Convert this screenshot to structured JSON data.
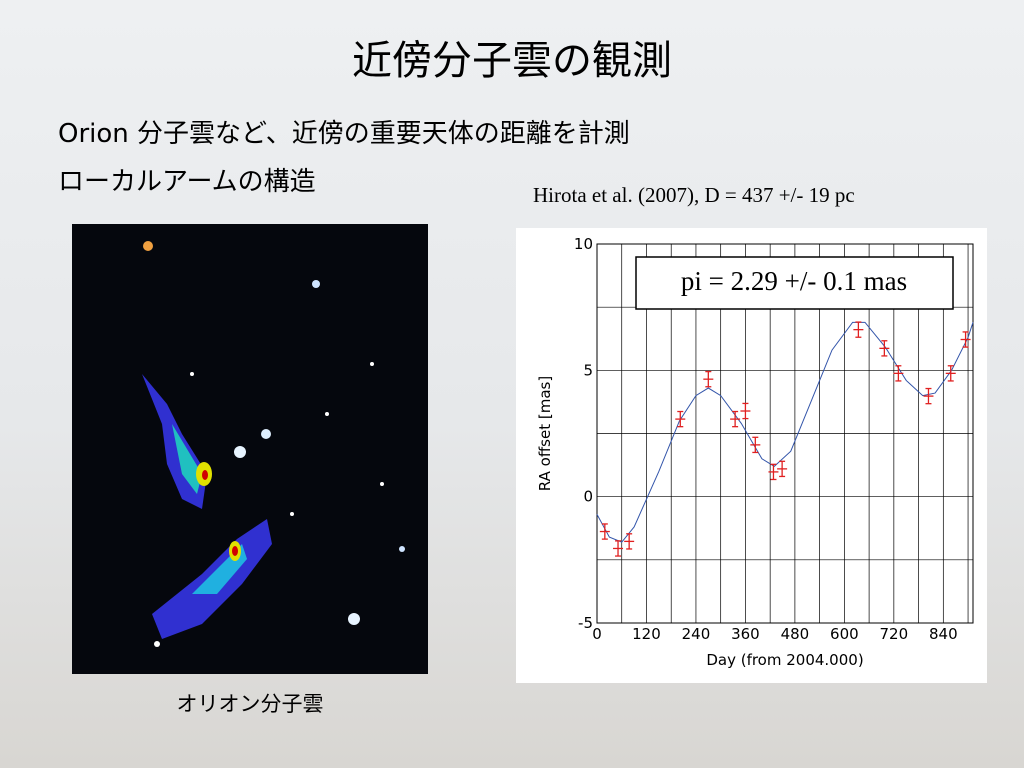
{
  "slide": {
    "title": "近傍分子雲の観測",
    "bullets": [
      "Orion 分子雲など、近傍の重要天体の距離を計測",
      "ローカルアームの構造"
    ],
    "citation": "Hirota et al. (2007), D = 437 +/- 19 pc",
    "image_caption": "オリオン分子雲"
  },
  "chart_data": {
    "type": "scatter",
    "annotation": "pi = 2.29 +/- 0.1 mas",
    "x_label": "Day (from 2004.000)",
    "y_label": "RA offset [mas]",
    "xlim": [
      0,
      912
    ],
    "ylim": [
      -5,
      10
    ],
    "xticks": [
      0,
      120,
      240,
      360,
      480,
      600,
      720,
      840
    ],
    "yticks": [
      -5,
      0,
      5,
      10
    ],
    "xgrid": [
      60,
      180,
      300,
      420,
      540,
      660,
      780,
      900
    ],
    "ygrid": [
      -2.5,
      2.5,
      7.5
    ],
    "grid": true,
    "points": {
      "color": "#e02020",
      "x": [
        19,
        51,
        78,
        202,
        270,
        335,
        360,
        384,
        428,
        449,
        634,
        697,
        731,
        804,
        858,
        894
      ],
      "values": [
        -1.38,
        -2.05,
        -1.77,
        3.07,
        4.65,
        3.07,
        3.39,
        2.05,
        0.98,
        1.1,
        6.61,
        5.87,
        4.88,
        3.98,
        4.88,
        6.22
      ],
      "errors": [
        0.3,
        0.3,
        0.3,
        0.3,
        0.3,
        0.3,
        0.3,
        0.3,
        0.3,
        0.3,
        0.3,
        0.3,
        0.3,
        0.3,
        0.3,
        0.3
      ]
    },
    "fit": {
      "color": "#3355aa",
      "x": [
        0,
        30,
        60,
        90,
        150,
        200,
        240,
        270,
        300,
        350,
        400,
        430,
        470,
        520,
        570,
        620,
        650,
        700,
        750,
        790,
        820,
        860,
        900,
        912
      ],
      "values": [
        -0.7,
        -1.6,
        -1.8,
        -1.2,
        1.0,
        3.0,
        4.0,
        4.3,
        4.0,
        2.9,
        1.5,
        1.2,
        1.8,
        3.8,
        5.8,
        6.9,
        6.9,
        5.9,
        4.6,
        4.0,
        4.1,
        5.0,
        6.3,
        6.9
      ]
    }
  }
}
